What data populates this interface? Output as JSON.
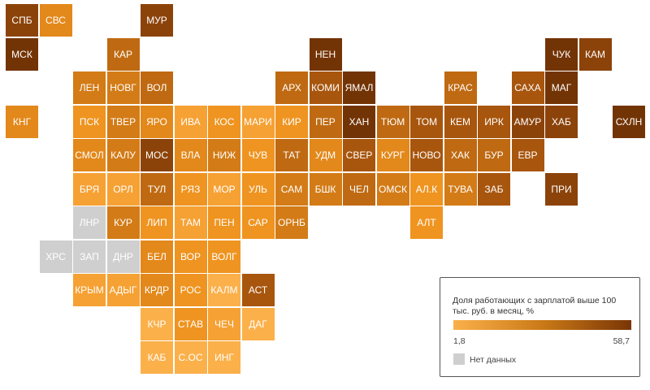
{
  "colors": {
    "c1": "#fbb04a",
    "c2": "#f6a133",
    "c3": "#ef9420",
    "c4": "#e3881a",
    "c5": "#d37b16",
    "c6": "#bf6a12",
    "c7": "#a8560e",
    "c8": "#8c430a",
    "c9": "#733405",
    "na": "#cfcfcf"
  },
  "regions": [
    {
      "label": "СПБ",
      "col": 0,
      "row": 0,
      "color": "c8"
    },
    {
      "label": "СВС",
      "col": 1,
      "row": 0,
      "color": "c4"
    },
    {
      "label": "МУР",
      "col": 4,
      "row": 0,
      "color": "c8"
    },
    {
      "label": "МСК",
      "col": 0,
      "row": 1,
      "color": "c9"
    },
    {
      "label": "КАР",
      "col": 3,
      "row": 1,
      "color": "c6"
    },
    {
      "label": "НЕН",
      "col": 9,
      "row": 1,
      "color": "c9"
    },
    {
      "label": "ЧУК",
      "col": 16,
      "row": 1,
      "color": "c9"
    },
    {
      "label": "КАМ",
      "col": 17,
      "row": 1,
      "color": "c8"
    },
    {
      "label": "ЛЕН",
      "col": 2,
      "row": 2,
      "color": "c5"
    },
    {
      "label": "НОВГ",
      "col": 3,
      "row": 2,
      "color": "c5"
    },
    {
      "label": "ВОЛ",
      "col": 4,
      "row": 2,
      "color": "c6"
    },
    {
      "label": "АРХ",
      "col": 8,
      "row": 2,
      "color": "c6"
    },
    {
      "label": "КОМИ",
      "col": 9,
      "row": 2,
      "color": "c7"
    },
    {
      "label": "ЯМАЛ",
      "col": 10,
      "row": 2,
      "color": "c9"
    },
    {
      "label": "КРАС",
      "col": 13,
      "row": 2,
      "color": "c6"
    },
    {
      "label": "САХА",
      "col": 15,
      "row": 2,
      "color": "c7"
    },
    {
      "label": "МАГ",
      "col": 16,
      "row": 2,
      "color": "c9"
    },
    {
      "label": "КНГ",
      "col": 0,
      "row": 3,
      "color": "c4"
    },
    {
      "label": "ПСК",
      "col": 2,
      "row": 3,
      "color": "c3"
    },
    {
      "label": "ТВЕР",
      "col": 3,
      "row": 3,
      "color": "c5"
    },
    {
      "label": "ЯРО",
      "col": 4,
      "row": 3,
      "color": "c4"
    },
    {
      "label": "ИВА",
      "col": 5,
      "row": 3,
      "color": "c2"
    },
    {
      "label": "КОС",
      "col": 6,
      "row": 3,
      "color": "c3"
    },
    {
      "label": "МАРИ",
      "col": 7,
      "row": 3,
      "color": "c2"
    },
    {
      "label": "КИР",
      "col": 8,
      "row": 3,
      "color": "c3"
    },
    {
      "label": "ПЕР",
      "col": 9,
      "row": 3,
      "color": "c6"
    },
    {
      "label": "ХАН",
      "col": 10,
      "row": 3,
      "color": "c9"
    },
    {
      "label": "ТЮМ",
      "col": 11,
      "row": 3,
      "color": "c6"
    },
    {
      "label": "ТОМ",
      "col": 12,
      "row": 3,
      "color": "c7"
    },
    {
      "label": "КЕМ",
      "col": 13,
      "row": 3,
      "color": "c7"
    },
    {
      "label": "ИРК",
      "col": 14,
      "row": 3,
      "color": "c7"
    },
    {
      "label": "АМУР",
      "col": 15,
      "row": 3,
      "color": "c8"
    },
    {
      "label": "ХАБ",
      "col": 16,
      "row": 3,
      "color": "c8"
    },
    {
      "label": "СХЛН",
      "col": 18,
      "row": 3,
      "color": "c9"
    },
    {
      "label": "СМОЛ",
      "col": 2,
      "row": 4,
      "color": "c4"
    },
    {
      "label": "КАЛУ",
      "col": 3,
      "row": 4,
      "color": "c5"
    },
    {
      "label": "МОС",
      "col": 4,
      "row": 4,
      "color": "c8"
    },
    {
      "label": "ВЛА",
      "col": 5,
      "row": 4,
      "color": "c4"
    },
    {
      "label": "НИЖ",
      "col": 6,
      "row": 4,
      "color": "c5"
    },
    {
      "label": "ЧУВ",
      "col": 7,
      "row": 4,
      "color": "c3"
    },
    {
      "label": "ТАТ",
      "col": 8,
      "row": 4,
      "color": "c6"
    },
    {
      "label": "УДМ",
      "col": 9,
      "row": 4,
      "color": "c4"
    },
    {
      "label": "СВЕР",
      "col": 10,
      "row": 4,
      "color": "c7"
    },
    {
      "label": "КУРГ",
      "col": 11,
      "row": 4,
      "color": "c4"
    },
    {
      "label": "НОВО",
      "col": 12,
      "row": 4,
      "color": "c7"
    },
    {
      "label": "ХАК",
      "col": 13,
      "row": 4,
      "color": "c6"
    },
    {
      "label": "БУР",
      "col": 14,
      "row": 4,
      "color": "c6"
    },
    {
      "label": "ЕВР",
      "col": 15,
      "row": 4,
      "color": "c7"
    },
    {
      "label": "БРЯ",
      "col": 2,
      "row": 5,
      "color": "c2"
    },
    {
      "label": "ОРЛ",
      "col": 3,
      "row": 5,
      "color": "c2"
    },
    {
      "label": "ТУЛ",
      "col": 4,
      "row": 5,
      "color": "c6"
    },
    {
      "label": "РЯЗ",
      "col": 5,
      "row": 5,
      "color": "c3"
    },
    {
      "label": "МОР",
      "col": 6,
      "row": 5,
      "color": "c2"
    },
    {
      "label": "УЛЬ",
      "col": 7,
      "row": 5,
      "color": "c3"
    },
    {
      "label": "САМ",
      "col": 8,
      "row": 5,
      "color": "c5"
    },
    {
      "label": "БШК",
      "col": 9,
      "row": 5,
      "color": "c5"
    },
    {
      "label": "ЧЕЛ",
      "col": 10,
      "row": 5,
      "color": "c6"
    },
    {
      "label": "ОМСК",
      "col": 11,
      "row": 5,
      "color": "c5"
    },
    {
      "label": "АЛ.К",
      "col": 12,
      "row": 5,
      "color": "c3"
    },
    {
      "label": "ТУВА",
      "col": 13,
      "row": 5,
      "color": "c5"
    },
    {
      "label": "ЗАБ",
      "col": 14,
      "row": 5,
      "color": "c7"
    },
    {
      "label": "ПРИ",
      "col": 16,
      "row": 5,
      "color": "c8"
    },
    {
      "label": "ЛНР",
      "col": 2,
      "row": 6,
      "color": "na"
    },
    {
      "label": "КУР",
      "col": 3,
      "row": 6,
      "color": "c5"
    },
    {
      "label": "ЛИП",
      "col": 4,
      "row": 6,
      "color": "c3"
    },
    {
      "label": "ТАМ",
      "col": 5,
      "row": 6,
      "color": "c2"
    },
    {
      "label": "ПЕН",
      "col": 6,
      "row": 6,
      "color": "c3"
    },
    {
      "label": "САР",
      "col": 7,
      "row": 6,
      "color": "c3"
    },
    {
      "label": "ОРНБ",
      "col": 8,
      "row": 6,
      "color": "c5"
    },
    {
      "label": "АЛТ",
      "col": 12,
      "row": 6,
      "color": "c3"
    },
    {
      "label": "ХРС",
      "col": 1,
      "row": 7,
      "color": "na"
    },
    {
      "label": "ЗАП",
      "col": 2,
      "row": 7,
      "color": "na"
    },
    {
      "label": "ДНР",
      "col": 3,
      "row": 7,
      "color": "na"
    },
    {
      "label": "БЕЛ",
      "col": 4,
      "row": 7,
      "color": "c4"
    },
    {
      "label": "ВОР",
      "col": 5,
      "row": 7,
      "color": "c3"
    },
    {
      "label": "ВОЛГ",
      "col": 6,
      "row": 7,
      "color": "c3"
    },
    {
      "label": "КРЫМ",
      "col": 2,
      "row": 8,
      "color": "c2"
    },
    {
      "label": "АДЫГ",
      "col": 3,
      "row": 8,
      "color": "c2"
    },
    {
      "label": "КРДР",
      "col": 4,
      "row": 8,
      "color": "c4"
    },
    {
      "label": "РОС",
      "col": 5,
      "row": 8,
      "color": "c3"
    },
    {
      "label": "КАЛМ",
      "col": 6,
      "row": 8,
      "color": "c1"
    },
    {
      "label": "АСТ",
      "col": 7,
      "row": 8,
      "color": "c7"
    },
    {
      "label": "КЧР",
      "col": 4,
      "row": 9,
      "color": "c1"
    },
    {
      "label": "СТАВ",
      "col": 5,
      "row": 9,
      "color": "c3"
    },
    {
      "label": "ЧЕЧ",
      "col": 6,
      "row": 9,
      "color": "c2"
    },
    {
      "label": "ДАГ",
      "col": 7,
      "row": 9,
      "color": "c1"
    },
    {
      "label": "КАБ",
      "col": 4,
      "row": 10,
      "color": "c1"
    },
    {
      "label": "С.ОС",
      "col": 5,
      "row": 10,
      "color": "c1"
    },
    {
      "label": "ИНГ",
      "col": 6,
      "row": 10,
      "color": "c1"
    }
  ],
  "legend": {
    "title": "Доля работающих с зарплатой выше 100 тыс. руб. в месяц, %",
    "min": "1,8",
    "max": "58,7",
    "na_label": "Нет данных"
  }
}
